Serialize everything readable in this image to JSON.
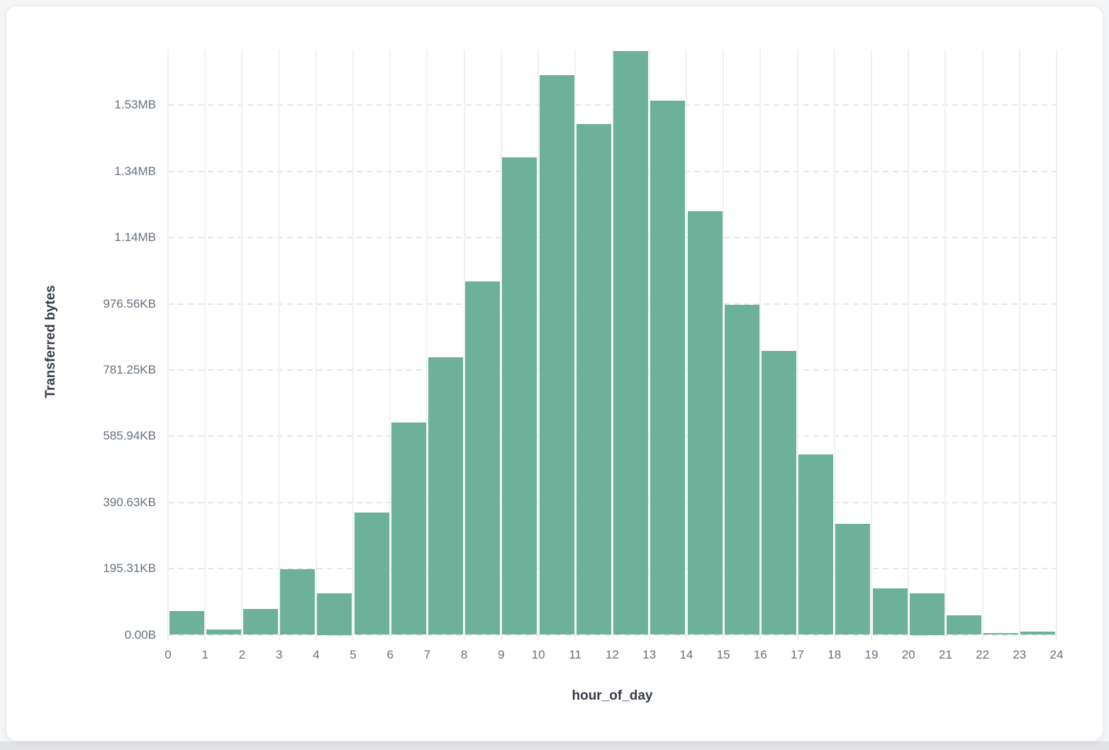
{
  "chart_data": {
    "type": "bar",
    "subtype": "histogram",
    "title": "",
    "xlabel": "hour_of_day",
    "ylabel": "Transferred bytes",
    "values_unit": "bytes",
    "bin_edges": [
      0,
      1,
      2,
      3,
      4,
      5,
      6,
      7,
      8,
      9,
      10,
      11,
      12,
      13,
      14,
      15,
      16,
      17,
      18,
      19,
      20,
      21,
      22,
      23,
      24
    ],
    "values": [
      72000,
      15000,
      78000,
      198000,
      125000,
      369000,
      642000,
      838000,
      1068000,
      1442000,
      1690000,
      1543000,
      1764000,
      1614000,
      1279000,
      997000,
      858000,
      545000,
      335000,
      140000,
      125000,
      58000,
      4500,
      9500
    ],
    "x_tick_labels": [
      "0",
      "1",
      "2",
      "3",
      "4",
      "5",
      "6",
      "7",
      "8",
      "9",
      "10",
      "11",
      "12",
      "13",
      "14",
      "15",
      "16",
      "17",
      "18",
      "19",
      "20",
      "21",
      "22",
      "23",
      "24"
    ],
    "y_ticks": [
      {
        "value": 0,
        "label": "0.00B"
      },
      {
        "value": 200000,
        "label": "195.31KB"
      },
      {
        "value": 400000,
        "label": "390.63KB"
      },
      {
        "value": 600000,
        "label": "585.94KB"
      },
      {
        "value": 800000,
        "label": "781.25KB"
      },
      {
        "value": 1000000,
        "label": "976.56KB"
      },
      {
        "value": 1200000,
        "label": "1.14MB"
      },
      {
        "value": 1400000,
        "label": "1.34MB"
      },
      {
        "value": 1600000,
        "label": "1.53MB"
      }
    ],
    "ylim": [
      0,
      1767000
    ],
    "grid": true,
    "legend": false
  },
  "colors": {
    "bar": "#6db19b",
    "vertical_grid": "#eef0f4",
    "horizontal_grid_dashed": "#e3e6ec",
    "tick_label": "#65707e",
    "axis_title": "#363c47",
    "card_background": "#ffffff",
    "page_background": "#f4f5f7"
  }
}
